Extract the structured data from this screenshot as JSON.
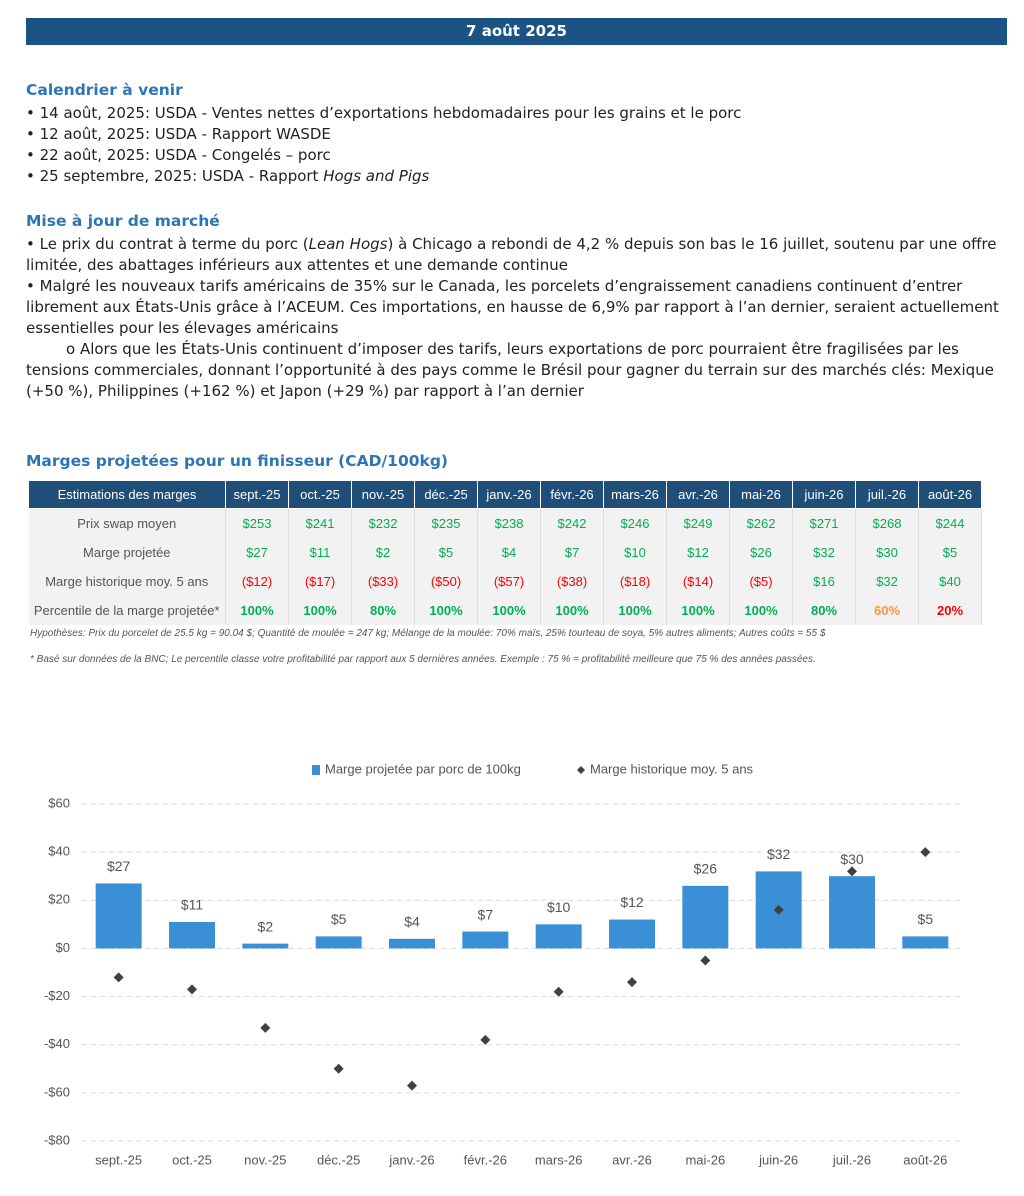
{
  "header": {
    "date": "7 août 2025"
  },
  "calendar": {
    "title": "Calendrier à venir",
    "items": [
      [
        {
          "text": "14 août, 2025: USDA - Ventes nettes d’exportations hebdomadaires pour les grains et le porc"
        }
      ],
      [
        {
          "text": "12 août, 2025: USDA - Rapport WASDE"
        }
      ],
      [
        {
          "text": "22 août, 2025: USDA - Congelés – porc"
        }
      ],
      [
        {
          "text": "25 septembre, 2025: USDA - Rapport "
        },
        {
          "text": "Hogs and Pigs",
          "italic": true
        }
      ]
    ]
  },
  "market": {
    "title": "Mise à jour de marché",
    "paragraphs": [
      {
        "level": 1,
        "segments": [
          {
            "text": "Le prix du contrat à terme du porc ("
          },
          {
            "text": "Lean Hogs",
            "italic": true
          },
          {
            "text": ") à Chicago a rebondi de 4,2 % depuis son bas le 16 juillet, soutenu par une offre limitée, des abattages inférieurs aux attentes et une demande continue"
          }
        ]
      },
      {
        "level": 1,
        "segments": [
          {
            "text": "Malgré les nouveaux tarifs américains de 35% sur le Canada, les porcelets d’engraissement canadiens continuent d’entrer librement aux États-Unis grâce à l’ACEUM. Ces importations, en hausse de 6,9% par rapport à l’an dernier, seraient actuellement essentielles pour les élevages américains"
          }
        ]
      },
      {
        "level": 2,
        "segments": [
          {
            "text": "Alors que les États-Unis continuent d’imposer des tarifs, leurs exportations de porc pourraient être fragilisées par les tensions commerciales, donnant l’opportunité à des pays comme le Brésil pour gagner du terrain sur des marchés clés: Mexique (+50 %), Philippines (+162 %) et Japon (+29 %) par rapport à l’an dernier"
          }
        ]
      }
    ]
  },
  "margins": {
    "title": "Marges projetées pour un finisseur (CAD/100kg)",
    "table": {
      "header": [
        "Estimations des marges",
        "sept.-25",
        "oct.-25",
        "nov.-25",
        "déc.-25",
        "janv.-26",
        "févr.-26",
        "mars-26",
        "avr.-26",
        "mai-26",
        "juin-26",
        "juil.-26",
        "août-26"
      ],
      "rows": [
        {
          "label": "Prix swap moyen",
          "cells": [
            "$253",
            "$241",
            "$232",
            "$235",
            "$238",
            "$242",
            "$246",
            "$249",
            "$262",
            "$271",
            "$268",
            "$244"
          ],
          "colors": [
            "#00b050",
            "#00b050",
            "#00b050",
            "#00b050",
            "#00b050",
            "#00b050",
            "#00b050",
            "#00b050",
            "#00b050",
            "#00b050",
            "#00b050",
            "#00b050"
          ]
        },
        {
          "label": "Marge projetée",
          "cells": [
            "$27",
            "$11",
            "$2",
            "$5",
            "$4",
            "$7",
            "$10",
            "$12",
            "$26",
            "$32",
            "$30",
            "$5"
          ],
          "colors": [
            "#00b050",
            "#00b050",
            "#00b050",
            "#00b050",
            "#00b050",
            "#00b050",
            "#00b050",
            "#00b050",
            "#00b050",
            "#00b050",
            "#00b050",
            "#00b050"
          ]
        },
        {
          "label": "Marge historique moy. 5 ans",
          "cells": [
            "($12)",
            "($17)",
            "($33)",
            "($50)",
            "($57)",
            "($38)",
            "($18)",
            "($14)",
            "($5)",
            "$16",
            "$32",
            "$40"
          ],
          "colors": [
            "#ff0000",
            "#ff0000",
            "#ff0000",
            "#ff0000",
            "#ff0000",
            "#ff0000",
            "#ff0000",
            "#ff0000",
            "#ff0000",
            "#00b050",
            "#00b050",
            "#00b050"
          ]
        },
        {
          "label": "Percentile de la marge projetée*",
          "cells": [
            "100%",
            "100%",
            "80%",
            "100%",
            "100%",
            "100%",
            "100%",
            "100%",
            "100%",
            "80%",
            "60%",
            "20%"
          ],
          "colors": [
            "#00b050",
            "#00b050",
            "#00b050",
            "#00b050",
            "#00b050",
            "#00b050",
            "#00b050",
            "#00b050",
            "#00b050",
            "#00b050",
            "#f79646",
            "#ff0000"
          ],
          "bold": true
        }
      ]
    },
    "notes": [
      "Hypothèses: Prix du porcelet de 25.5 kg = 90.04 $; Quantité de moulée = 247 kg; Mélange de la moulée: 70% maïs, 25% tourteau de soya, 5% autres aliments; Autres coûts = 55 $",
      "* Basé sur données de la BNC; Le percentile classe votre profitabilité par rapport aux 5 dernières années. Exemple : 75 % = profitabilité meilleure que 75 % des années passées."
    ]
  },
  "chart_data": {
    "type": "bar",
    "categories": [
      "sept.-25",
      "oct.-25",
      "nov.-25",
      "déc.-25",
      "janv.-26",
      "févr.-26",
      "mars-26",
      "avr.-26",
      "mai-26",
      "juin-26",
      "juil.-26",
      "août-26"
    ],
    "series": [
      {
        "name": "Marge projetée par porc de 100kg",
        "type": "bar",
        "color": "#3a8fd6",
        "values": [
          27,
          11,
          2,
          5,
          4,
          7,
          10,
          12,
          26,
          32,
          30,
          5
        ],
        "value_labels": [
          "$27",
          "$11",
          "$2",
          "$5",
          "$4",
          "$7",
          "$10",
          "$12",
          "$26",
          "$32",
          "$30",
          "$5"
        ]
      },
      {
        "name": "Marge historique moy. 5 ans",
        "type": "scatter",
        "color": "#404040",
        "values": [
          -12,
          -17,
          -33,
          -50,
          -57,
          -38,
          -18,
          -14,
          -5,
          16,
          32,
          40
        ]
      }
    ],
    "ylim": [
      -80,
      60
    ],
    "yticks": [
      {
        "value": -80,
        "label": "-$80"
      },
      {
        "value": -60,
        "label": "-$60"
      },
      {
        "value": -40,
        "label": "-$40"
      },
      {
        "value": -20,
        "label": "-$20"
      },
      {
        "value": 0,
        "label": "$0"
      },
      {
        "value": 20,
        "label": "$20"
      },
      {
        "value": 40,
        "label": "$40"
      },
      {
        "value": 60,
        "label": "$60"
      }
    ],
    "grid": true,
    "legend": "top"
  }
}
